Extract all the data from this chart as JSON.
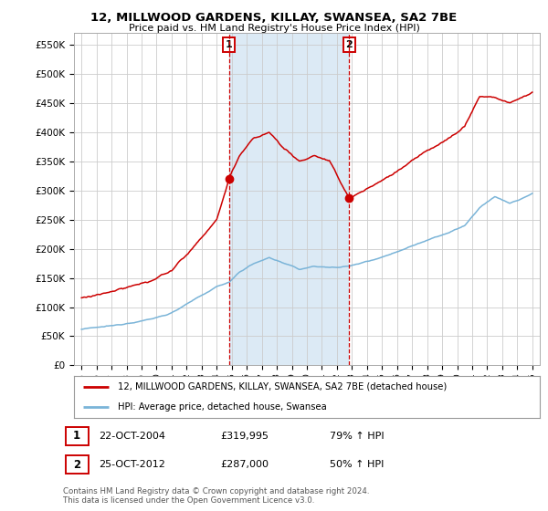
{
  "title": "12, MILLWOOD GARDENS, KILLAY, SWANSEA, SA2 7BE",
  "subtitle": "Price paid vs. HM Land Registry's House Price Index (HPI)",
  "legend_line1": "12, MILLWOOD GARDENS, KILLAY, SWANSEA, SA2 7BE (detached house)",
  "legend_line2": "HPI: Average price, detached house, Swansea",
  "transaction1_date": "22-OCT-2004",
  "transaction1_price": "£319,995",
  "transaction1_hpi": "79% ↑ HPI",
  "transaction2_date": "25-OCT-2012",
  "transaction2_price": "£287,000",
  "transaction2_hpi": "50% ↑ HPI",
  "footer": "Contains HM Land Registry data © Crown copyright and database right 2024.\nThis data is licensed under the Open Government Licence v3.0.",
  "hpi_color": "#7ab4d8",
  "price_color": "#cc0000",
  "vline_color": "#cc0000",
  "span_color": "#dceaf5",
  "grid_color": "#cccccc",
  "border_color": "#aaaaaa",
  "marker1_year": 2004.82,
  "marker2_year": 2012.82,
  "marker1_price": 319995,
  "marker2_price": 287000,
  "ylim_min": 0,
  "ylim_max": 570000,
  "yticks": [
    0,
    50000,
    100000,
    150000,
    200000,
    250000,
    300000,
    350000,
    400000,
    450000,
    500000,
    550000
  ],
  "xmin": 1994.5,
  "xmax": 2025.5,
  "hpi_anchors_x": [
    1995.0,
    1996.0,
    1997.0,
    1998.0,
    1999.0,
    2000.0,
    2001.0,
    2002.0,
    2003.0,
    2004.0,
    2004.82,
    2005.5,
    2006.5,
    2007.5,
    2008.5,
    2009.5,
    2010.5,
    2011.5,
    2012.82,
    2013.5,
    2014.5,
    2015.5,
    2016.5,
    2017.5,
    2018.5,
    2019.5,
    2020.5,
    2021.5,
    2022.5,
    2023.5,
    2024.5,
    2025.0
  ],
  "hpi_anchors_y": [
    62000,
    65000,
    68000,
    72000,
    76000,
    82000,
    90000,
    105000,
    120000,
    135000,
    143000,
    160000,
    175000,
    185000,
    175000,
    165000,
    170000,
    168000,
    170000,
    175000,
    182000,
    190000,
    200000,
    210000,
    220000,
    228000,
    240000,
    270000,
    290000,
    278000,
    288000,
    295000
  ],
  "price_anchors_x": [
    1995.0,
    1996.0,
    1997.0,
    1998.0,
    1999.0,
    2000.0,
    2001.0,
    2002.0,
    2003.0,
    2004.0,
    2004.82,
    2005.5,
    2006.5,
    2007.5,
    2008.5,
    2009.5,
    2010.5,
    2011.5,
    2012.82,
    2013.5,
    2014.5,
    2015.5,
    2016.5,
    2017.5,
    2018.5,
    2019.5,
    2020.5,
    2021.5,
    2022.5,
    2023.5,
    2024.5,
    2025.0
  ],
  "price_anchors_y": [
    116000,
    121000,
    126000,
    133000,
    140000,
    150000,
    163000,
    190000,
    220000,
    250000,
    319995,
    360000,
    390000,
    400000,
    372000,
    350000,
    360000,
    350000,
    287000,
    296000,
    310000,
    325000,
    342000,
    360000,
    376000,
    390000,
    410000,
    462000,
    460000,
    450000,
    462000,
    468000
  ]
}
